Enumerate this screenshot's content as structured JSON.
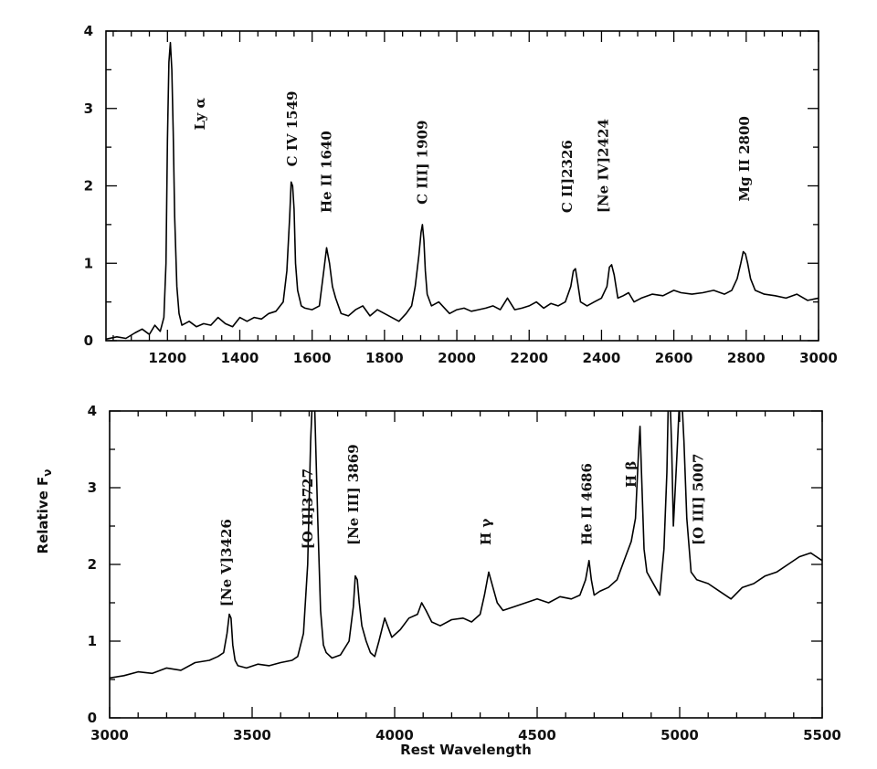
{
  "figure": {
    "ylabel": "Relative F",
    "ylabel_subscript": "ν",
    "xlabel": "Rest Wavelength"
  },
  "chart_data": [
    {
      "type": "line",
      "xlim": [
        1030,
        3000
      ],
      "ylim": [
        0,
        4
      ],
      "x_ticks": [
        1200,
        1400,
        1600,
        1800,
        2000,
        2200,
        2400,
        2600,
        2800,
        3000
      ],
      "y_ticks": [
        0,
        1,
        2,
        3,
        4
      ],
      "x_minor_step": 50,
      "y_minor_step": 0.5,
      "annotations": [
        {
          "text": "Ly α",
          "x": 1290,
          "y": 2.72
        },
        {
          "text": "C IV 1549",
          "x": 1545,
          "y": 2.25
        },
        {
          "text": "He II 1640",
          "x": 1640,
          "y": 1.65
        },
        {
          "text": "C III] 1909",
          "x": 1905,
          "y": 1.76
        },
        {
          "text": "C II]2326",
          "x": 2305,
          "y": 1.65
        },
        {
          "text": "[Ne IV]2424",
          "x": 2405,
          "y": 1.65
        },
        {
          "text": "Mg II 2800",
          "x": 2795,
          "y": 1.8
        }
      ],
      "series": [
        {
          "x": [
            1030,
            1060,
            1085,
            1110,
            1130,
            1150,
            1165,
            1180,
            1190,
            1196,
            1200,
            1204,
            1208,
            1212,
            1216,
            1220,
            1226,
            1232,
            1240,
            1260,
            1280,
            1300,
            1320,
            1340,
            1360,
            1380,
            1400,
            1420,
            1440,
            1460,
            1480,
            1500,
            1520,
            1530,
            1538,
            1542,
            1546,
            1550,
            1554,
            1560,
            1570,
            1580,
            1600,
            1620,
            1632,
            1640,
            1648,
            1656,
            1665,
            1680,
            1700,
            1720,
            1740,
            1760,
            1780,
            1800,
            1820,
            1840,
            1860,
            1875,
            1885,
            1895,
            1901,
            1905,
            1909,
            1913,
            1918,
            1930,
            1950,
            1980,
            2000,
            2020,
            2040,
            2060,
            2080,
            2100,
            2120,
            2140,
            2160,
            2180,
            2200,
            2220,
            2240,
            2260,
            2280,
            2300,
            2315,
            2322,
            2328,
            2334,
            2342,
            2360,
            2380,
            2400,
            2415,
            2422,
            2428,
            2435,
            2445,
            2460,
            2475,
            2490,
            2510,
            2540,
            2570,
            2600,
            2620,
            2650,
            2680,
            2710,
            2740,
            2760,
            2775,
            2785,
            2792,
            2798,
            2804,
            2812,
            2825,
            2850,
            2880,
            2910,
            2940,
            2970,
            3000
          ],
          "y": [
            0.02,
            0.05,
            0.03,
            0.1,
            0.15,
            0.08,
            0.2,
            0.12,
            0.3,
            1.0,
            2.6,
            3.6,
            3.85,
            3.5,
            2.7,
            1.6,
            0.7,
            0.35,
            0.2,
            0.25,
            0.18,
            0.22,
            0.2,
            0.3,
            0.22,
            0.18,
            0.3,
            0.25,
            0.3,
            0.28,
            0.35,
            0.38,
            0.5,
            0.9,
            1.6,
            2.05,
            2.0,
            1.7,
            1.0,
            0.65,
            0.45,
            0.42,
            0.4,
            0.45,
            0.9,
            1.2,
            1.0,
            0.7,
            0.55,
            0.35,
            0.32,
            0.4,
            0.45,
            0.32,
            0.4,
            0.35,
            0.3,
            0.25,
            0.35,
            0.45,
            0.7,
            1.1,
            1.4,
            1.5,
            1.3,
            0.9,
            0.6,
            0.45,
            0.5,
            0.35,
            0.4,
            0.42,
            0.38,
            0.4,
            0.42,
            0.45,
            0.4,
            0.55,
            0.4,
            0.42,
            0.45,
            0.5,
            0.42,
            0.48,
            0.45,
            0.5,
            0.7,
            0.9,
            0.93,
            0.75,
            0.5,
            0.45,
            0.5,
            0.55,
            0.7,
            0.95,
            0.98,
            0.85,
            0.55,
            0.58,
            0.62,
            0.5,
            0.55,
            0.6,
            0.58,
            0.65,
            0.62,
            0.6,
            0.62,
            0.65,
            0.6,
            0.65,
            0.8,
            1.0,
            1.15,
            1.12,
            1.0,
            0.8,
            0.65,
            0.6,
            0.58,
            0.55,
            0.6,
            0.52,
            0.55
          ]
        }
      ]
    },
    {
      "type": "line",
      "xlim": [
        3000,
        5500
      ],
      "ylim": [
        0,
        4
      ],
      "x_ticks": [
        3000,
        3500,
        4000,
        4500,
        5000,
        5500
      ],
      "y_ticks": [
        0,
        1,
        2,
        3,
        4
      ],
      "x_minor_step": 100,
      "y_minor_step": 0.5,
      "annotations": [
        {
          "text": "[Ne V]3426",
          "x": 3410,
          "y": 1.45
        },
        {
          "text": "[O II]3727",
          "x": 3695,
          "y": 2.2
        },
        {
          "text": "[Ne III] 3869",
          "x": 3855,
          "y": 2.25
        },
        {
          "text": "H γ",
          "x": 4320,
          "y": 2.25
        },
        {
          "text": "He II 4686",
          "x": 4675,
          "y": 2.25
        },
        {
          "text": "H β",
          "x": 4830,
          "y": 3.0
        },
        {
          "text": "[O III] 5007",
          "x": 5065,
          "y": 2.25
        }
      ],
      "series": [
        {
          "x": [
            3000,
            3050,
            3100,
            3150,
            3200,
            3250,
            3300,
            3350,
            3380,
            3400,
            3412,
            3420,
            3426,
            3432,
            3440,
            3450,
            3480,
            3520,
            3560,
            3600,
            3640,
            3660,
            3680,
            3695,
            3705,
            3712,
            3720,
            3730,
            3740,
            3750,
            3760,
            3780,
            3810,
            3840,
            3855,
            3862,
            3869,
            3876,
            3885,
            3900,
            3915,
            3930,
            3945,
            3965,
            3975,
            3990,
            4020,
            4050,
            4080,
            4095,
            4110,
            4130,
            4160,
            4200,
            4240,
            4270,
            4300,
            4315,
            4330,
            4345,
            4360,
            4380,
            4420,
            4460,
            4500,
            4540,
            4580,
            4620,
            4650,
            4670,
            4682,
            4690,
            4700,
            4720,
            4750,
            4780,
            4810,
            4830,
            4845,
            4856,
            4861,
            4866,
            4875,
            4885,
            4900,
            4915,
            4930,
            4945,
            4955,
            4960,
            4966,
            4972,
            4978,
            4990,
            5000,
            5007,
            5015,
            5025,
            5040,
            5060,
            5100,
            5140,
            5180,
            5220,
            5260,
            5300,
            5340,
            5380,
            5420,
            5460,
            5500
          ],
          "y": [
            0.52,
            0.55,
            0.6,
            0.58,
            0.65,
            0.62,
            0.72,
            0.75,
            0.8,
            0.85,
            1.1,
            1.35,
            1.3,
            0.95,
            0.75,
            0.68,
            0.65,
            0.7,
            0.68,
            0.72,
            0.75,
            0.8,
            1.1,
            2.0,
            3.6,
            4.2,
            4.0,
            2.6,
            1.4,
            0.95,
            0.85,
            0.78,
            0.82,
            1.0,
            1.45,
            1.85,
            1.8,
            1.5,
            1.2,
            1.0,
            0.85,
            0.8,
            1.0,
            1.3,
            1.2,
            1.05,
            1.15,
            1.3,
            1.35,
            1.5,
            1.4,
            1.25,
            1.2,
            1.28,
            1.3,
            1.25,
            1.35,
            1.6,
            1.9,
            1.7,
            1.5,
            1.4,
            1.45,
            1.5,
            1.55,
            1.5,
            1.58,
            1.55,
            1.6,
            1.8,
            2.05,
            1.8,
            1.6,
            1.65,
            1.7,
            1.8,
            2.1,
            2.3,
            2.6,
            3.5,
            3.8,
            3.2,
            2.2,
            1.9,
            1.8,
            1.7,
            1.6,
            2.2,
            3.2,
            4.1,
            4.2,
            3.5,
            2.5,
            3.4,
            4.2,
            4.2,
            3.6,
            2.6,
            1.9,
            1.8,
            1.75,
            1.65,
            1.55,
            1.7,
            1.75,
            1.85,
            1.9,
            2.0,
            2.1,
            2.15,
            2.05
          ]
        }
      ]
    }
  ]
}
